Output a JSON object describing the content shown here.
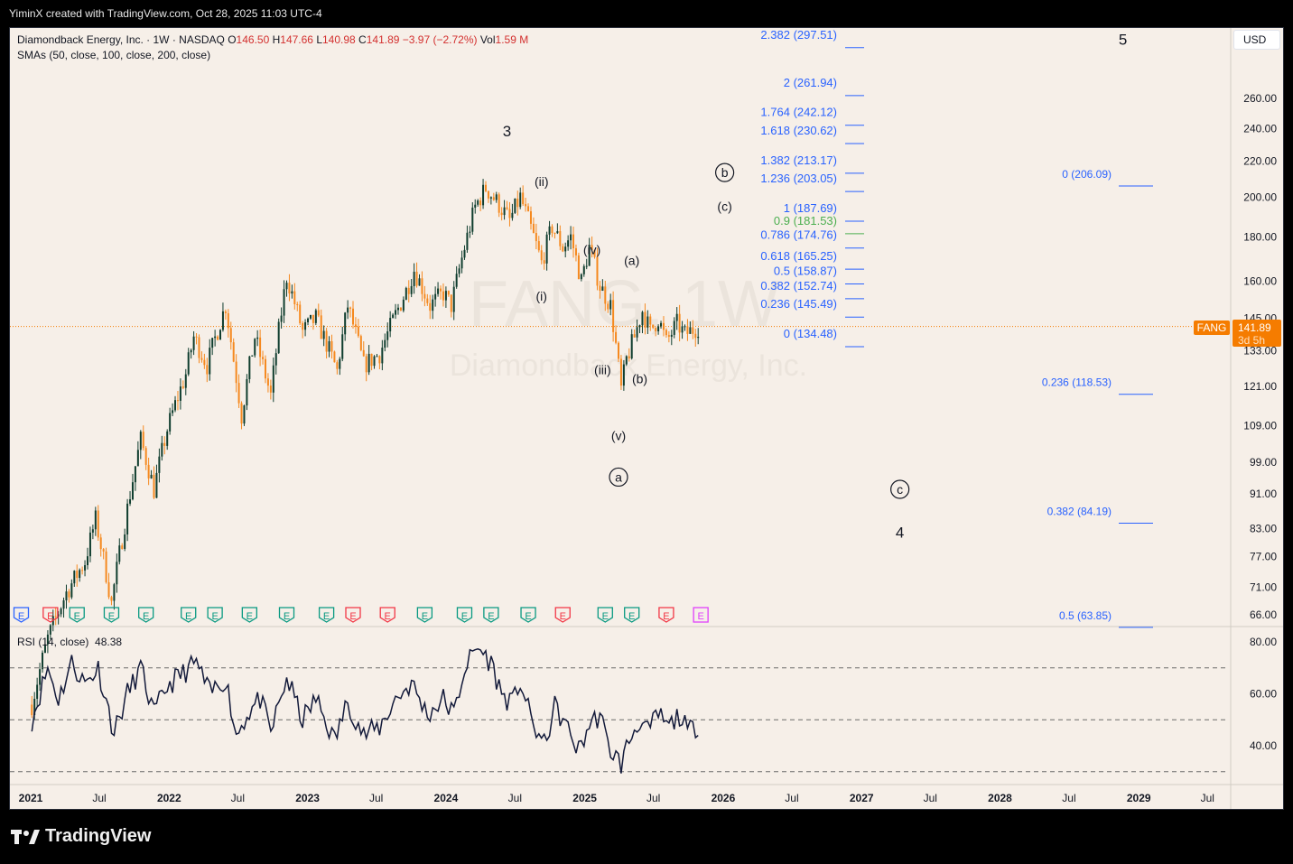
{
  "attribution": "YiminX created with TradingView.com, Oct 28, 2025 11:03 UTC-4",
  "brand": "TradingView",
  "currency_button": "USD",
  "symbol": "FANG",
  "legend": {
    "title": "Diamondback Energy, Inc. · 1W · NASDAQ",
    "o_label": "O",
    "o_value": "146.50",
    "h_label": "H",
    "h_value": "147.66",
    "l_label": "L",
    "l_value": "140.98",
    "c_label": "C",
    "c_value": "141.89",
    "change": "−3.97 (−2.72%)",
    "vol_label": "Vol",
    "vol_value": "1.59 M",
    "sma_line": "SMAs (50, close, 100, close, 200, close)"
  },
  "watermark": {
    "ticker": "FANG, 1W",
    "name": "Diamondback Energy, Inc."
  },
  "price_badge": {
    "price": "141.89",
    "countdown": "3d 5h"
  },
  "rsi_legend": {
    "label": "RSI (14, close)",
    "value": "48.38"
  },
  "colors": {
    "background": "#f6efe8",
    "up_candle": "#0f3d2e",
    "down_candle": "#f5891f",
    "fib_text": "#2962ff",
    "fib_highlight": "#4caf50",
    "rsi_line": "#131a3a",
    "price_line": "#f57c00",
    "earnings_green": "#089981",
    "earnings_red": "#f23645",
    "earnings_future": "#e040fb"
  },
  "chart_data": {
    "type": "candlestick",
    "price_axis_labels": [
      "260.00",
      "240.00",
      "220.00",
      "200.00",
      "180.00",
      "160.00",
      "145.00",
      "133.00",
      "121.00",
      "109.00",
      "99.00",
      "91.00",
      "83.00",
      "77.00",
      "71.00",
      "66.00"
    ],
    "price_axis_values": [
      260,
      240,
      220,
      200,
      180,
      160,
      145,
      133,
      121,
      109,
      99,
      91,
      83,
      77,
      71,
      66
    ],
    "time_axis": [
      {
        "label": "2021",
        "date": "2021-01-01",
        "bold": true
      },
      {
        "label": "Jul",
        "date": "2021-07-01",
        "bold": false
      },
      {
        "label": "2022",
        "date": "2022-01-01",
        "bold": true
      },
      {
        "label": "Jul",
        "date": "2022-07-01",
        "bold": false
      },
      {
        "label": "2023",
        "date": "2023-01-01",
        "bold": true
      },
      {
        "label": "Jul",
        "date": "2023-07-01",
        "bold": false
      },
      {
        "label": "2024",
        "date": "2024-01-01",
        "bold": true
      },
      {
        "label": "Jul",
        "date": "2024-07-01",
        "bold": false
      },
      {
        "label": "2025",
        "date": "2025-01-01",
        "bold": true
      },
      {
        "label": "Jul",
        "date": "2025-07-01",
        "bold": false
      },
      {
        "label": "2026",
        "date": "2026-01-01",
        "bold": true
      },
      {
        "label": "Jul",
        "date": "2026-07-01",
        "bold": false
      },
      {
        "label": "2027",
        "date": "2027-01-01",
        "bold": true
      },
      {
        "label": "Jul",
        "date": "2027-07-01",
        "bold": false
      },
      {
        "label": "2028",
        "date": "2028-01-01",
        "bold": true
      },
      {
        "label": "Jul",
        "date": "2028-07-01",
        "bold": false
      },
      {
        "label": "2029",
        "date": "2029-01-01",
        "bold": true
      },
      {
        "label": "Jul",
        "date": "2029-07-01",
        "bold": false
      }
    ],
    "price_path": [
      [
        "2021-01-04",
        52
      ],
      [
        "2021-02-15",
        62
      ],
      [
        "2021-04-05",
        70
      ],
      [
        "2021-05-24",
        76
      ],
      [
        "2021-06-21",
        85
      ],
      [
        "2021-08-02",
        68
      ],
      [
        "2021-09-06",
        84
      ],
      [
        "2021-10-18",
        105
      ],
      [
        "2021-11-22",
        92
      ],
      [
        "2021-12-27",
        108
      ],
      [
        "2022-02-14",
        125
      ],
      [
        "2022-03-07",
        138
      ],
      [
        "2022-04-11",
        128
      ],
      [
        "2022-05-30",
        150
      ],
      [
        "2022-06-20",
        130
      ],
      [
        "2022-07-11",
        112
      ],
      [
        "2022-08-15",
        138
      ],
      [
        "2022-09-26",
        118
      ],
      [
        "2022-11-07",
        162
      ],
      [
        "2022-12-19",
        140
      ],
      [
        "2023-01-23",
        145
      ],
      [
        "2023-03-20",
        126
      ],
      [
        "2023-04-17",
        150
      ],
      [
        "2023-05-29",
        128
      ],
      [
        "2023-07-10",
        132
      ],
      [
        "2023-09-18",
        156
      ],
      [
        "2023-10-09",
        165
      ],
      [
        "2023-11-20",
        150
      ],
      [
        "2023-12-25",
        155
      ],
      [
        "2024-01-15",
        150
      ],
      [
        "2024-02-12",
        170
      ],
      [
        "2024-03-18",
        195
      ],
      [
        "2024-04-15",
        205
      ],
      [
        "2024-05-20",
        196
      ],
      [
        "2024-06-17",
        188
      ],
      [
        "2024-07-15",
        200
      ],
      [
        "2024-08-19",
        180
      ],
      [
        "2024-09-09",
        168
      ],
      [
        "2024-10-07",
        185
      ],
      [
        "2024-11-04",
        175
      ],
      [
        "2024-11-25",
        180
      ],
      [
        "2024-12-23",
        160
      ],
      [
        "2025-01-13",
        175
      ],
      [
        "2025-02-10",
        158
      ],
      [
        "2025-03-10",
        150
      ],
      [
        "2025-04-07",
        120
      ],
      [
        "2025-04-21",
        130
      ],
      [
        "2025-05-12",
        138
      ],
      [
        "2025-06-02",
        148
      ],
      [
        "2025-06-23",
        140
      ],
      [
        "2025-07-14",
        145
      ],
      [
        "2025-08-04",
        136
      ],
      [
        "2025-09-01",
        143
      ],
      [
        "2025-09-22",
        139
      ],
      [
        "2025-10-27",
        141.89
      ]
    ],
    "fib_extension": {
      "levels": [
        {
          "label": "2.382 (297.51)",
          "price": 297.51
        },
        {
          "label": "2 (261.94)",
          "price": 261.94
        },
        {
          "label": "1.764 (242.12)",
          "price": 242.12
        },
        {
          "label": "1.618 (230.62)",
          "price": 230.62
        },
        {
          "label": "1.382 (213.17)",
          "price": 213.17
        },
        {
          "label": "1.236 (203.05)",
          "price": 203.05
        },
        {
          "label": "1 (187.69)",
          "price": 187.69
        },
        {
          "label": "0.9 (181.53)",
          "price": 181.53,
          "highlight": true
        },
        {
          "label": "0.786 (174.76)",
          "price": 174.76
        },
        {
          "label": "0.618 (165.25)",
          "price": 165.25
        },
        {
          "label": "0.5 (158.87)",
          "price": 158.87
        },
        {
          "label": "0.382 (152.74)",
          "price": 152.74
        },
        {
          "label": "0.236 (145.49)",
          "price": 145.49
        },
        {
          "label": "0 (134.48)",
          "price": 134.48
        }
      ]
    },
    "fib_retracement": {
      "levels": [
        {
          "label": "0 (206.09)",
          "price": 206.09
        },
        {
          "label": "0.236 (118.53)",
          "price": 118.53
        },
        {
          "label": "0.382 (84.19)",
          "price": 84.19
        },
        {
          "label": "0.5 (63.85)",
          "price": 63.85
        }
      ]
    },
    "wave_labels": [
      {
        "text": "3",
        "date": "2024-06-10",
        "price": 235,
        "circled": false,
        "size": "large"
      },
      {
        "text": "(ii)",
        "date": "2024-09-09",
        "price": 206,
        "circled": false,
        "size": "small"
      },
      {
        "text": "(i)",
        "date": "2024-09-09",
        "price": 152,
        "circled": false,
        "size": "small"
      },
      {
        "text": "(iv)",
        "date": "2025-01-20",
        "price": 172,
        "circled": false,
        "size": "small"
      },
      {
        "text": "(a)",
        "date": "2025-05-05",
        "price": 167,
        "circled": false,
        "size": "small"
      },
      {
        "text": "(iii)",
        "date": "2025-02-17",
        "price": 125,
        "circled": false,
        "size": "small"
      },
      {
        "text": "(b)",
        "date": "2025-05-26",
        "price": 122,
        "circled": false,
        "size": "small"
      },
      {
        "text": "(v)",
        "date": "2025-03-31",
        "price": 105,
        "circled": false,
        "size": "small"
      },
      {
        "text": "a",
        "date": "2025-03-31",
        "price": 94,
        "circled": true,
        "size": "small"
      },
      {
        "text": "b",
        "date": "2026-01-05",
        "price": 211,
        "circled": true,
        "size": "small"
      },
      {
        "text": "(c)",
        "date": "2026-01-05",
        "price": 193,
        "circled": false,
        "size": "small"
      },
      {
        "text": "c",
        "date": "2027-04-12",
        "price": 91,
        "circled": true,
        "size": "small"
      },
      {
        "text": "4",
        "date": "2027-04-12",
        "price": 81,
        "circled": false,
        "size": "large"
      },
      {
        "text": "5",
        "date": "2028-11-20",
        "price": 300,
        "circled": false,
        "size": "large"
      }
    ],
    "earnings": [
      {
        "date": "2020-12-07",
        "type": "E",
        "color": "blue"
      },
      {
        "date": "2021-02-22",
        "type": "E",
        "color": "red"
      },
      {
        "date": "2021-05-03",
        "type": "E",
        "color": "green"
      },
      {
        "date": "2021-08-02",
        "type": "E",
        "color": "green"
      },
      {
        "date": "2021-11-01",
        "type": "E",
        "color": "green"
      },
      {
        "date": "2022-02-21",
        "type": "E",
        "color": "green"
      },
      {
        "date": "2022-05-02",
        "type": "E",
        "color": "green"
      },
      {
        "date": "2022-08-01",
        "type": "E",
        "color": "green"
      },
      {
        "date": "2022-11-07",
        "type": "E",
        "color": "green"
      },
      {
        "date": "2023-02-20",
        "type": "E",
        "color": "green"
      },
      {
        "date": "2023-05-01",
        "type": "E",
        "color": "red"
      },
      {
        "date": "2023-07-31",
        "type": "E",
        "color": "red"
      },
      {
        "date": "2023-11-06",
        "type": "E",
        "color": "green"
      },
      {
        "date": "2024-02-19",
        "type": "E",
        "color": "green"
      },
      {
        "date": "2024-04-29",
        "type": "E",
        "color": "green"
      },
      {
        "date": "2024-08-05",
        "type": "E",
        "color": "green"
      },
      {
        "date": "2024-11-04",
        "type": "E",
        "color": "red"
      },
      {
        "date": "2025-02-24",
        "type": "E",
        "color": "green"
      },
      {
        "date": "2025-05-05",
        "type": "E",
        "color": "green"
      },
      {
        "date": "2025-08-04",
        "type": "E",
        "color": "red"
      },
      {
        "date": "2025-11-03",
        "type": "E",
        "color": "future"
      }
    ],
    "rsi": {
      "axis_labels": [
        "80.00",
        "60.00",
        "40.00"
      ],
      "axis_values": [
        80,
        60,
        40
      ],
      "upper_band": 70,
      "middle_band": 50,
      "lower_band": 30,
      "path": [
        [
          "2021-01-04",
          50
        ],
        [
          "2021-02-15",
          70
        ],
        [
          "2021-03-15",
          58
        ],
        [
          "2021-04-19",
          72
        ],
        [
          "2021-05-24",
          64
        ],
        [
          "2021-06-28",
          70
        ],
        [
          "2021-08-09",
          45
        ],
        [
          "2021-09-13",
          60
        ],
        [
          "2021-10-18",
          70
        ],
        [
          "2021-11-22",
          52
        ],
        [
          "2021-12-27",
          63
        ],
        [
          "2022-02-07",
          68
        ],
        [
          "2022-03-14",
          72
        ],
        [
          "2022-04-18",
          60
        ],
        [
          "2022-05-30",
          66
        ],
        [
          "2022-06-27",
          44
        ],
        [
          "2022-07-25",
          52
        ],
        [
          "2022-08-29",
          58
        ],
        [
          "2022-09-26",
          45
        ],
        [
          "2022-11-07",
          66
        ],
        [
          "2022-12-19",
          50
        ],
        [
          "2023-01-23",
          58
        ],
        [
          "2023-03-13",
          42
        ],
        [
          "2023-04-17",
          57
        ],
        [
          "2023-05-29",
          44
        ],
        [
          "2023-07-10",
          47
        ],
        [
          "2023-08-21",
          58
        ],
        [
          "2023-10-02",
          64
        ],
        [
          "2023-11-13",
          52
        ],
        [
          "2023-12-25",
          58
        ],
        [
          "2024-01-22",
          52
        ],
        [
          "2024-02-19",
          70
        ],
        [
          "2024-03-25",
          78
        ],
        [
          "2024-04-29",
          72
        ],
        [
          "2024-05-27",
          60
        ],
        [
          "2024-06-24",
          56
        ],
        [
          "2024-07-15",
          65
        ],
        [
          "2024-08-12",
          50
        ],
        [
          "2024-09-16",
          40
        ],
        [
          "2024-10-14",
          55
        ],
        [
          "2024-11-11",
          48
        ],
        [
          "2024-12-16",
          38
        ],
        [
          "2025-01-13",
          48
        ],
        [
          "2025-02-10",
          52
        ],
        [
          "2025-03-03",
          40
        ],
        [
          "2025-04-07",
          33
        ],
        [
          "2025-04-28",
          42
        ],
        [
          "2025-05-26",
          50
        ],
        [
          "2025-06-16",
          45
        ],
        [
          "2025-07-14",
          52
        ],
        [
          "2025-08-11",
          47
        ],
        [
          "2025-09-08",
          52
        ],
        [
          "2025-09-29",
          45
        ],
        [
          "2025-10-27",
          48.38
        ]
      ]
    }
  }
}
